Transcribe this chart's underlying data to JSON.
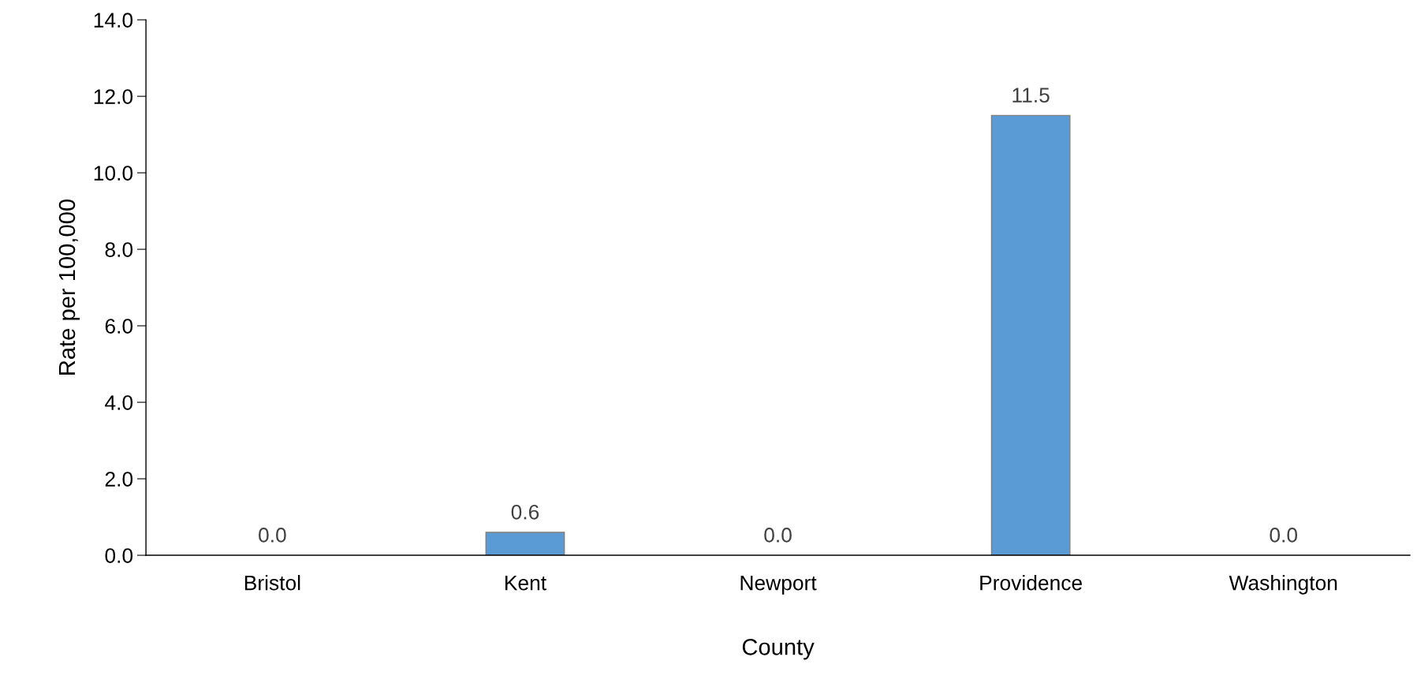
{
  "chart_data": {
    "type": "bar",
    "xlabel": "County",
    "ylabel": "Rate per 100,000",
    "categories": [
      "Bristol",
      "Kent",
      "Newport",
      "Providence",
      "Washington"
    ],
    "values": [
      0.0,
      0.6,
      0.0,
      11.5,
      0.0
    ],
    "value_labels": [
      "0.0",
      "0.6",
      "0.0",
      "11.5",
      "0.0"
    ],
    "color": "#5b9bd5",
    "ylim": [
      0,
      14
    ],
    "yticks": [
      {
        "value": 0,
        "label": "0.0"
      },
      {
        "value": 2,
        "label": "2.0"
      },
      {
        "value": 4,
        "label": "4.0"
      },
      {
        "value": 6,
        "label": "6.0"
      },
      {
        "value": 8,
        "label": "8.0"
      },
      {
        "value": 10,
        "label": "10.0"
      },
      {
        "value": 12,
        "label": "12.0"
      },
      {
        "value": 14,
        "label": "14.0"
      }
    ],
    "grid": false,
    "legend": false
  }
}
